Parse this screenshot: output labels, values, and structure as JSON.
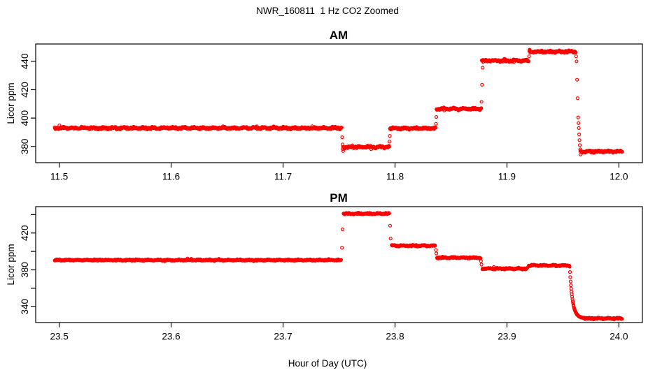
{
  "figure": {
    "main_title": "NWR_160811  1 Hz CO2 Zoomed",
    "xlabel": "Hour of Day (UTC)",
    "background": "#ffffff",
    "point_color": "#ff0000",
    "axis_color": "#000000"
  },
  "chart_data": [
    {
      "panel": "AM",
      "type": "scatter",
      "title": "AM",
      "ylabel": "Licor ppm",
      "marker": "open-circle",
      "color": "#ff0000",
      "grid": false,
      "xlim": [
        11.479,
        12.021
      ],
      "ylim": [
        368.6,
        452.2
      ],
      "xticks": [
        11.5,
        11.6,
        11.7,
        11.8,
        11.9,
        12.0
      ],
      "xtick_labels": [
        "11.5",
        "11.6",
        "11.7",
        "11.8",
        "11.9",
        "12.0"
      ],
      "yticks": [
        380,
        400,
        420,
        440
      ],
      "ytick_labels": [
        "380",
        "400",
        "420",
        "440"
      ],
      "segments": [
        {
          "t0": 11.496,
          "t1": 11.7525,
          "ppm": 393.0
        },
        {
          "t0": 11.7535,
          "t1": 11.795,
          "ppm": 379.6
        },
        {
          "t0": 11.7955,
          "t1": 11.8365,
          "ppm": 392.8
        },
        {
          "t0": 11.837,
          "t1": 11.877,
          "ppm": 406.5
        },
        {
          "t0": 11.8775,
          "t1": 11.9195,
          "ppm": 440.5
        },
        {
          "t0": 11.92,
          "t1": 11.9615,
          "ppm": 446.8
        },
        {
          "t0": 11.9655,
          "t1": 12.003,
          "ppm": 376.5
        }
      ],
      "transition_points": [
        [
          11.7528,
          386.5
        ],
        [
          11.7531,
          381.5
        ],
        [
          11.7533,
          378.2
        ],
        [
          11.7536,
          376.8
        ],
        [
          11.795,
          383.5
        ],
        [
          11.7953,
          387.5
        ],
        [
          11.8366,
          396.0
        ],
        [
          11.8369,
          400.8
        ],
        [
          11.8773,
          411.5
        ],
        [
          11.8778,
          423.5
        ],
        [
          11.8783,
          435.5
        ],
        [
          11.8788,
          439.5
        ],
        [
          11.9197,
          443.5
        ],
        [
          11.9202,
          448.2
        ],
        [
          11.9618,
          443.5
        ],
        [
          11.9622,
          440.0
        ],
        [
          11.9626,
          427.0
        ],
        [
          11.9631,
          414.0
        ],
        [
          11.9636,
          400.5
        ],
        [
          11.9639,
          396.5
        ],
        [
          11.9642,
          393.0
        ],
        [
          11.9645,
          388.5
        ],
        [
          11.9648,
          384.5
        ],
        [
          11.9651,
          381.0
        ],
        [
          11.9654,
          378.0
        ],
        [
          11.9658,
          374.3
        ]
      ]
    },
    {
      "panel": "PM",
      "type": "scatter",
      "title": "PM",
      "ylabel": "Licor ppm",
      "marker": "open-circle",
      "color": "#ff0000",
      "grid": false,
      "xlim": [
        23.479,
        24.021
      ],
      "ylim": [
        322.8,
        448.6
      ],
      "xticks": [
        23.5,
        23.6,
        23.7,
        23.8,
        23.9,
        24.0
      ],
      "xtick_labels": [
        "23.5",
        "23.6",
        "23.7",
        "23.8",
        "23.9",
        "24.0"
      ],
      "yticks": [
        340,
        360,
        380,
        400,
        420,
        440
      ],
      "ytick_labels": [
        "340",
        "",
        "380",
        "",
        "420",
        ""
      ],
      "segments": [
        {
          "t0": 23.496,
          "t1": 23.752,
          "ppm": 390.6
        },
        {
          "t0": 23.754,
          "t1": 23.795,
          "ppm": 441.0
        },
        {
          "t0": 23.797,
          "t1": 23.836,
          "ppm": 406.2
        },
        {
          "t0": 23.8375,
          "t1": 23.8765,
          "ppm": 393.2
        },
        {
          "t0": 23.878,
          "t1": 23.918,
          "ppm": 381.3
        },
        {
          "t0": 23.9195,
          "t1": 23.956,
          "ppm": 384.8
        },
        {
          "t0": 23.9695,
          "t1": 24.003,
          "ppm": 327.3
        }
      ],
      "transition_points": [
        [
          23.7526,
          404.0
        ],
        [
          23.7531,
          424.0
        ],
        [
          23.7956,
          428.0
        ],
        [
          23.7961,
          414.0
        ],
        [
          23.8365,
          401.5
        ],
        [
          23.8369,
          397.8
        ],
        [
          23.8768,
          389.5
        ],
        [
          23.8772,
          385.8
        ],
        [
          23.9186,
          382.8
        ]
      ],
      "decay": {
        "t0": 23.956,
        "t1": 23.9695,
        "from": 383.5,
        "to": 327.5,
        "tau_s": 9
      }
    }
  ]
}
